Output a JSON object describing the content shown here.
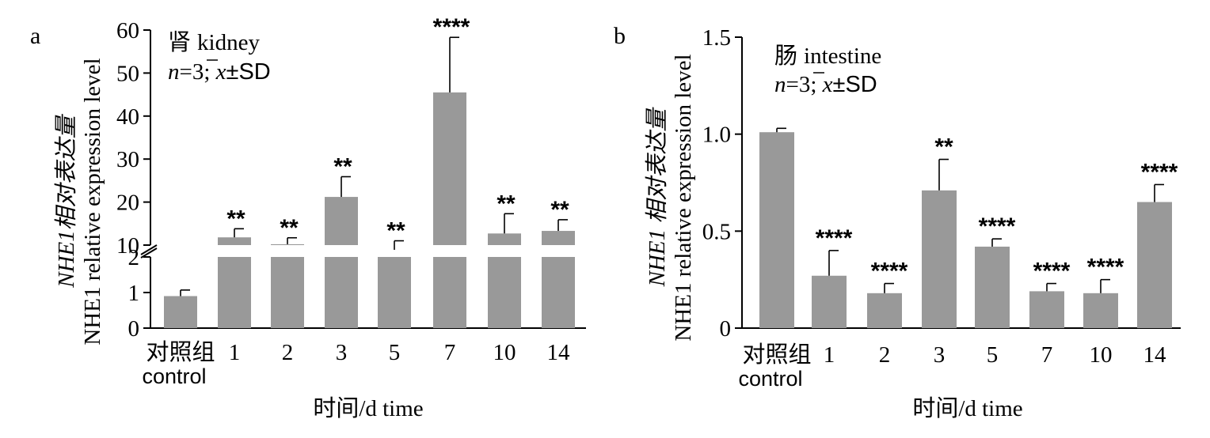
{
  "chart_data": [
    {
      "panel": "a",
      "type": "bar",
      "title_cn": "肾",
      "title_en": "kidney",
      "stat_n": "n",
      "stat_rest": "=3; ",
      "stat_x": "x",
      "stat_sd": "±SD",
      "ylabel_cn": "NHE1相对表达量",
      "ylabel_en": "NHE1 relative expression level",
      "xlabel": "时间/d time",
      "categories": [
        "对照组",
        "1",
        "2",
        "3",
        "5",
        "7",
        "10",
        "14"
      ],
      "category0_sub": "control",
      "values": [
        0.9,
        11.8,
        10.2,
        21.2,
        8.9,
        45.5,
        12.7,
        13.3
      ],
      "errors": [
        0.17,
        2.0,
        1.5,
        4.7,
        2.1,
        12.8,
        4.6,
        2.6
      ],
      "significance": [
        "",
        "**",
        "**",
        "**",
        "**",
        "****",
        "**",
        "**"
      ],
      "axis_break": true,
      "ylim_lower": [
        0,
        2
      ],
      "ylim_upper": [
        10,
        60
      ],
      "yticks_lower": [
        "0",
        "1",
        "2"
      ],
      "yticks_upper": [
        "10",
        "20",
        "30",
        "40",
        "50",
        "60"
      ],
      "bar_color": "#999999"
    },
    {
      "panel": "b",
      "type": "bar",
      "title_cn": "肠",
      "title_en": "intestine",
      "stat_n": "n",
      "stat_rest": "=3; ",
      "stat_x": "x",
      "stat_sd": "±SD",
      "ylabel_cn": "NHE1 相对表达量",
      "ylabel_en": "NHE1 relative expression level",
      "xlabel": "时间/d time",
      "categories": [
        "对照组",
        "1",
        "2",
        "3",
        "5",
        "7",
        "10",
        "14"
      ],
      "category0_sub": "control",
      "values": [
        1.01,
        0.27,
        0.18,
        0.71,
        0.42,
        0.19,
        0.18,
        0.65
      ],
      "errors": [
        0.02,
        0.13,
        0.05,
        0.16,
        0.04,
        0.04,
        0.07,
        0.09
      ],
      "significance": [
        "",
        "****",
        "****",
        "**",
        "****",
        "****",
        "****",
        "****"
      ],
      "ylim": [
        0,
        1.5
      ],
      "yticks": [
        "0",
        "0.5",
        "1.0",
        "1.5"
      ],
      "bar_color": "#999999"
    }
  ]
}
